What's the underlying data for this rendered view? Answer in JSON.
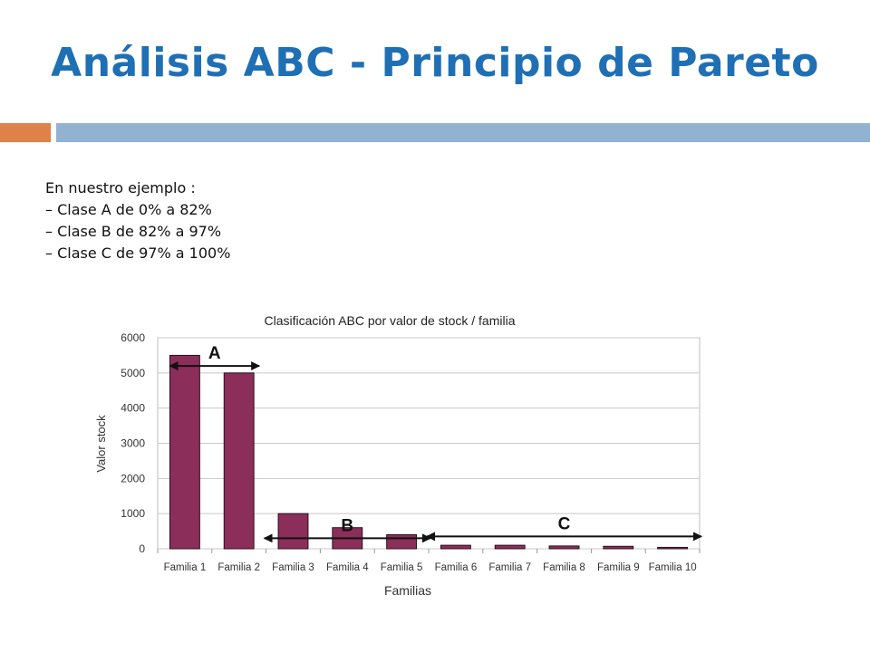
{
  "slide": {
    "title": "Análisis ABC - Principio de Pareto",
    "accent_color": "#dd8249",
    "rule_color": "#92b2d1",
    "title_color": "#1f6fb5"
  },
  "intro": {
    "heading": "En nuestro ejemplo :",
    "lines": [
      "– Clase A de 0% a 82%",
      "– Clase B de 82% a 97%",
      "– Clase C de 97% a 100%"
    ]
  },
  "chart_data": {
    "type": "bar",
    "title": "Clasificación ABC por valor de stock / familia",
    "xlabel": "Familias",
    "ylabel": "Valor stock",
    "categories": [
      "Familia 1",
      "Familia 2",
      "Familia 3",
      "Familia 4",
      "Familia 5",
      "Familia 6",
      "Familia 7",
      "Familia 8",
      "Familia 9",
      "Familia 10"
    ],
    "values": [
      5500,
      5000,
      1000,
      600,
      400,
      100,
      100,
      80,
      70,
      40
    ],
    "ylim": [
      0,
      6000
    ],
    "yticks": [
      0,
      1000,
      2000,
      3000,
      4000,
      5000,
      6000
    ],
    "grid": true,
    "bar_color": "#8b2e5a",
    "annotations": [
      {
        "label": "A",
        "from": 0,
        "to": 1
      },
      {
        "label": "B",
        "from": 2,
        "to": 4
      },
      {
        "label": "C",
        "from": 5,
        "to": 9
      }
    ]
  }
}
